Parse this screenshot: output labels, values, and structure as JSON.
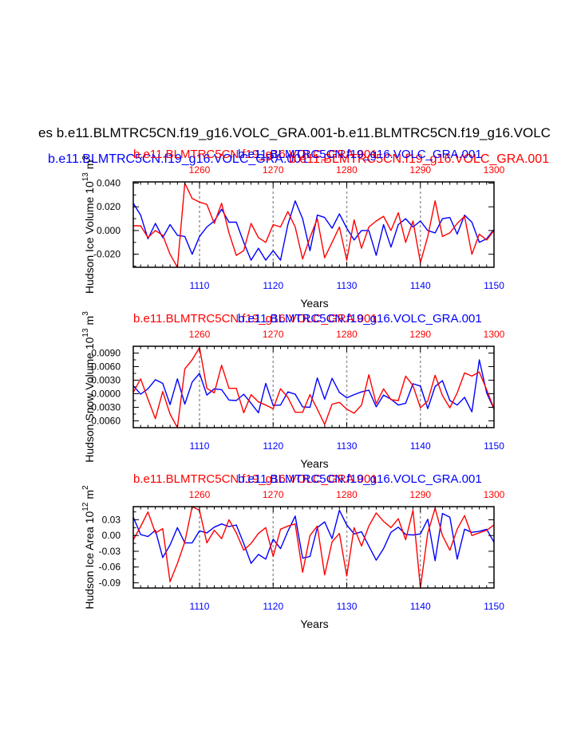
{
  "figure": {
    "main_title": "es b.e11.BLMTRC5CN.f19_g16.VOLC_GRA.001-b.e11.BLMTRC5CN.f19_g16.VOLC",
    "top_blue_title": "b.e11.BLMTRC5CN.f19_g16.VOLC_GRA.001",
    "top_red_title": "b.e11.BLMTRC5CN.f19_g16.VOLC_GRA.001",
    "colors": {
      "red": "#ff0000",
      "blue": "#0000ff",
      "axis": "#000000",
      "grid": "#999999"
    }
  },
  "chart_data": [
    {
      "type": "line",
      "id": "ice_volume",
      "red_title": "b.e11.BLMTRC5CN.f19_g16.VOLC_GRA.001",
      "blue_title": "b.e11.BLMTRC5CN.f19_g16.VOLC_GRA.001",
      "ylabel_main": "Hudson Ice Volume 10",
      "ylabel_exp": "13",
      "ylabel_unit": "m",
      "ylabel_unit_exp": "3",
      "xlabel": "Years",
      "x_bottom": {
        "range": [
          1101,
          1150
        ],
        "ticks": [
          1110,
          1120,
          1130,
          1140,
          1150
        ],
        "labels": [
          "1110",
          "1120",
          "1130",
          "1140",
          "1150"
        ]
      },
      "x_top": {
        "range": [
          1251,
          1300
        ],
        "ticks": [
          1260,
          1270,
          1280,
          1290,
          1300
        ],
        "labels": [
          "1260",
          "1270",
          "1280",
          "1290",
          "1300"
        ]
      },
      "ylim": [
        -0.031,
        0.041
      ],
      "yticks": [
        -0.02,
        0.0,
        0.02,
        0.04
      ],
      "ytick_labels": [
        "-0.020",
        "0.000",
        "0.020",
        "0.040"
      ],
      "vgrid_years": [
        1110,
        1120,
        1130,
        1140
      ],
      "series": [
        {
          "name": "blue",
          "color": "#0000ff",
          "values": [
            0.023,
            0.013,
            -0.007,
            0.006,
            -0.006,
            0.005,
            -0.004,
            -0.005,
            -0.02,
            -0.005,
            0.003,
            0.008,
            0.018,
            0.007,
            0.007,
            -0.01,
            -0.025,
            -0.015,
            -0.025,
            -0.017,
            -0.025,
            0.005,
            0.025,
            0.01,
            -0.017,
            0.013,
            0.011,
            0.002,
            0.014,
            0.002,
            -0.008,
            0.0,
            0.0,
            -0.021,
            0.005,
            -0.014,
            0.005,
            0.01,
            0.003,
            0.008,
            0.0,
            -0.002,
            0.01,
            0.011,
            -0.003,
            0.013,
            0.007,
            -0.01,
            -0.007,
            0.001
          ]
        },
        {
          "name": "red",
          "color": "#ff0000",
          "values": [
            0.004,
            0.004,
            -0.006,
            0.0,
            -0.004,
            -0.02,
            -0.031,
            0.04,
            0.027,
            0.024,
            0.022,
            0.006,
            0.023,
            -0.002,
            -0.021,
            -0.017,
            0.006,
            -0.006,
            -0.01,
            0.005,
            0.003,
            0.016,
            0.003,
            -0.024,
            -0.006,
            0.01,
            -0.023,
            -0.01,
            0.003,
            -0.025,
            0.009,
            -0.015,
            0.003,
            0.008,
            0.012,
            0.0,
            0.015,
            -0.01,
            0.008,
            -0.027,
            -0.005,
            0.025,
            -0.005,
            -0.002,
            0.006,
            0.012,
            -0.02,
            -0.003,
            -0.008,
            0.0
          ]
        }
      ]
    },
    {
      "type": "line",
      "id": "snow_volume",
      "red_title": "b.e11.BLMTRC5CN.f19_g16.VOLC_GRA.001",
      "blue_title": "b.e11.BLMTRC5CN.f19_g16.VOLC_GRA.001",
      "ylabel_main": "Hudson Snow Volume 10",
      "ylabel_exp": "13",
      "ylabel_unit": "m",
      "ylabel_unit_exp": "3",
      "xlabel": "Years",
      "x_bottom": {
        "range": [
          1101,
          1150
        ],
        "ticks": [
          1110,
          1120,
          1130,
          1140,
          1150
        ],
        "labels": [
          "1110",
          "1120",
          "1130",
          "1140",
          "1150"
        ]
      },
      "x_top": {
        "range": [
          1251,
          1300
        ],
        "ticks": [
          1260,
          1270,
          1280,
          1290,
          1300
        ],
        "labels": [
          "1260",
          "1270",
          "1280",
          "1290",
          "1300"
        ]
      },
      "ylim": [
        -0.0075,
        0.0105
      ],
      "yticks": [
        -0.006,
        -0.003,
        0.0,
        0.003,
        0.006,
        0.009
      ],
      "ytick_labels": [
        "-0.0060",
        "-0.0030",
        "0.0000",
        "0.0030",
        "0.0060",
        "0.0090"
      ],
      "vgrid_years": [
        1110,
        1120,
        1130,
        1140
      ],
      "series": [
        {
          "name": "blue",
          "color": "#0000ff",
          "values": [
            0.0018,
            -0.0001,
            0.0011,
            0.0031,
            0.0023,
            -0.0024,
            0.0033,
            -0.0023,
            0.0026,
            0.0045,
            -0.0003,
            0.0011,
            0.0009,
            -0.0014,
            -0.0015,
            -0.0001,
            -0.0021,
            -0.0042,
            0.0023,
            -0.0026,
            -0.0025,
            0.0004,
            -0.0001,
            -0.0029,
            -0.003,
            0.0035,
            -0.0012,
            0.0034,
            0.0003,
            -0.0009,
            -0.0002,
            0.0004,
            0.0008,
            -0.0029,
            -0.0003,
            -0.0012,
            -0.0025,
            -0.0021,
            0.0022,
            0.0017,
            -0.0033,
            0.0016,
            0.0029,
            -0.0015,
            -0.0025,
            -0.0008,
            -0.004,
            0.0075,
            0.0002,
            -0.0034
          ]
        },
        {
          "name": "red",
          "color": "#ff0000",
          "values": [
            0.0003,
            0.0033,
            -0.0012,
            -0.0055,
            0.0005,
            -0.0045,
            -0.0075,
            0.0055,
            0.0075,
            0.0102,
            0.0012,
            0.0002,
            0.0063,
            0.0012,
            0.0012,
            -0.0042,
            -0.0002,
            -0.0018,
            -0.0025,
            -0.0033,
            0.0011,
            -0.0008,
            -0.0041,
            -0.0041,
            -0.0002,
            -0.0034,
            -0.0068,
            -0.0023,
            -0.0019,
            -0.0034,
            -0.0043,
            -0.0025,
            0.0042,
            -0.0022,
            0.0011,
            -0.0013,
            -0.0015,
            0.0039,
            0.0018,
            -0.0031,
            -0.0016,
            0.0041,
            -0.0004,
            -0.0031,
            0.0002,
            0.0046,
            0.0039,
            0.0048,
            0.0009,
            -0.0033
          ]
        }
      ]
    },
    {
      "type": "line",
      "id": "ice_area",
      "red_title": "b.e11.BLMTRC5CN.f19_g16.VOLC_GRA.001",
      "blue_title": "b.e11.BLMTRC5CN.f19_g16.VOLC_GRA.001",
      "ylabel_main": "Hudson Ice Area 10",
      "ylabel_exp": "12",
      "ylabel_unit": "m",
      "ylabel_unit_exp": "2",
      "xlabel": "Years",
      "x_bottom": {
        "range": [
          1101,
          1150
        ],
        "ticks": [
          1110,
          1120,
          1130,
          1140,
          1150
        ],
        "labels": [
          "1110",
          "1120",
          "1130",
          "1140",
          "1150"
        ]
      },
      "x_top": {
        "range": [
          1251,
          1300
        ],
        "ticks": [
          1260,
          1270,
          1280,
          1290,
          1300
        ],
        "labels": [
          "1260",
          "1270",
          "1280",
          "1290",
          "1300"
        ]
      },
      "ylim": [
        -0.1,
        0.055
      ],
      "yticks": [
        -0.09,
        -0.06,
        -0.03,
        0.0,
        0.03
      ],
      "ytick_labels": [
        "-0.09",
        "-0.06",
        "-0.03",
        "0.00",
        "0.03"
      ],
      "vgrid_years": [
        1110,
        1120,
        1130,
        1140
      ],
      "series": [
        {
          "name": "blue",
          "color": "#0000ff",
          "values": [
            0.035,
            0.002,
            -0.002,
            0.01,
            -0.042,
            -0.018,
            0.015,
            -0.014,
            -0.014,
            0.009,
            0.005,
            0.016,
            0.022,
            0.017,
            0.02,
            -0.015,
            -0.053,
            -0.036,
            -0.045,
            -0.007,
            -0.025,
            0.008,
            0.037,
            -0.043,
            -0.04,
            0.015,
            0.026,
            -0.006,
            0.048,
            0.02,
            0.003,
            0.007,
            -0.02,
            -0.047,
            -0.025,
            0.006,
            0.016,
            0.002,
            0.001,
            0.003,
            0.031,
            -0.048,
            0.042,
            0.035,
            -0.045,
            0.012,
            0.006,
            0.008,
            0.012,
            -0.013
          ]
        },
        {
          "name": "red",
          "color": "#ff0000",
          "values": [
            -0.008,
            0.017,
            0.045,
            0.005,
            0.013,
            -0.088,
            -0.053,
            -0.012,
            0.055,
            0.048,
            -0.014,
            0.01,
            -0.006,
            0.03,
            0.005,
            -0.028,
            -0.015,
            0.004,
            0.015,
            -0.04,
            0.012,
            0.018,
            0.022,
            -0.07,
            0.0,
            0.018,
            -0.075,
            -0.012,
            0.004,
            -0.077,
            0.015,
            -0.02,
            0.018,
            0.043,
            0.027,
            0.015,
            0.032,
            -0.008,
            0.048,
            -0.1,
            0.005,
            0.052,
            0.0,
            -0.028,
            0.012,
            0.038,
            0.0,
            0.005,
            0.01,
            0.02
          ]
        }
      ]
    }
  ]
}
